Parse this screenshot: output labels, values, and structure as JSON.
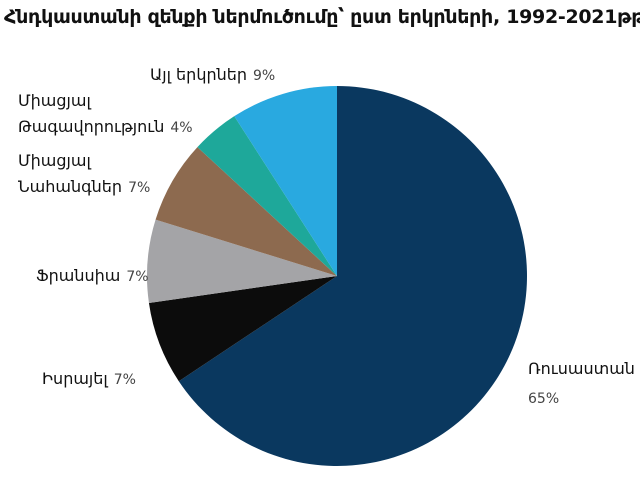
{
  "chart_data": {
    "type": "pie",
    "title": "Հնդկաստանի զենքի ներմուծումը՝ ըստ երկրների, 1992-2021թթ.",
    "categories": [
      "Ռուսաստան",
      "Իսրայել",
      "Ֆրանսիա",
      "Միացյալ Նահանգներ",
      "Միացյալ Թագավորություն",
      "Այլ երկրներ"
    ],
    "values": [
      65,
      7,
      7,
      7,
      4,
      9
    ],
    "value_labels": [
      "65%",
      "7%",
      "7%",
      "7%",
      "4%",
      "9%"
    ],
    "colors": [
      "#0a385f",
      "#0c0c0c",
      "#a4a4a7",
      "#8d6a4f",
      "#1ea89a",
      "#29a9e0"
    ]
  }
}
